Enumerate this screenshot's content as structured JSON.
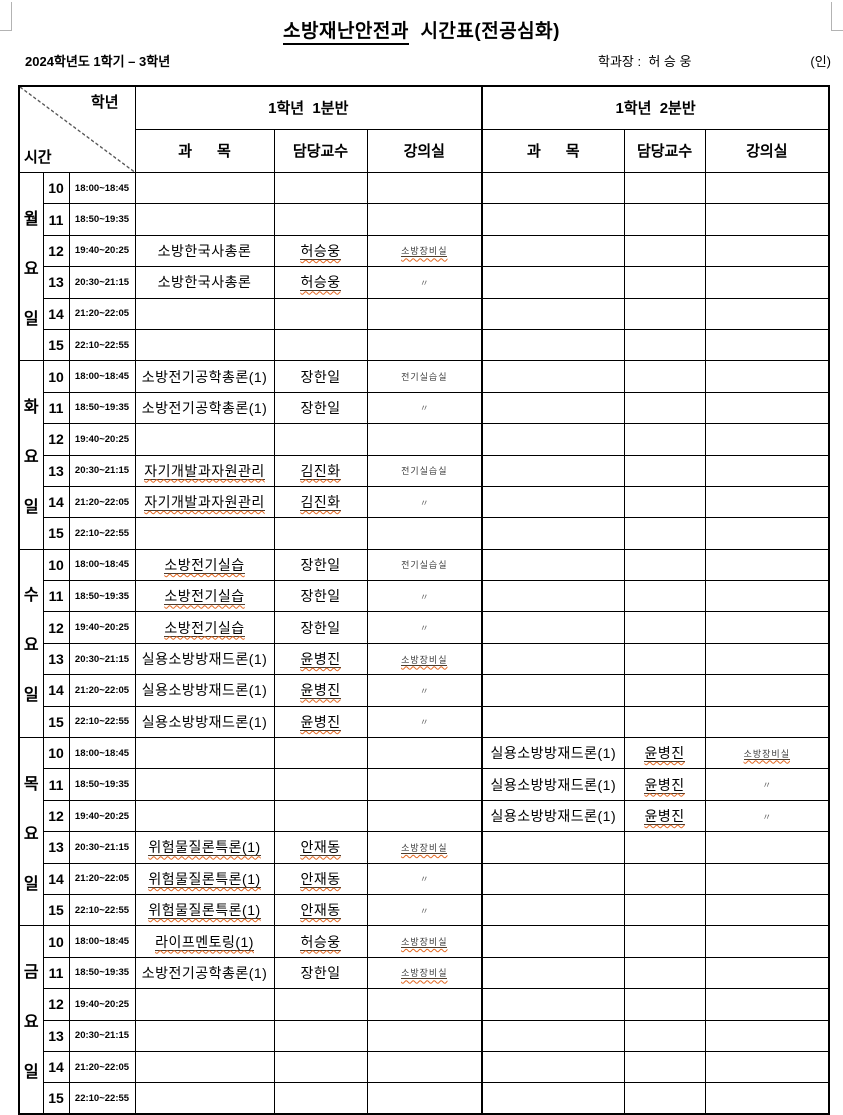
{
  "page": {
    "title_underline": "소방재난안전과",
    "title_rest": "  시간표(전공심화)",
    "term": "2024학년도 1학기 – 3학년",
    "dept_head": "학과장 :  허 승 웅",
    "seal": "(인)"
  },
  "table": {
    "corner_top": "학년",
    "corner_bottom": "시간",
    "groups": [
      "1학년  1분반",
      "1학년  2분반"
    ],
    "sub_headers": [
      "과      목",
      "담당교수",
      "강의실"
    ],
    "periods": [
      "10",
      "11",
      "12",
      "13",
      "14",
      "15"
    ],
    "times": [
      "18:00~18:45",
      "18:50~19:35",
      "19:40~20:25",
      "20:30~21:15",
      "21:20~22:05",
      "22:10~22:55"
    ],
    "ditto_mark": "〃"
  },
  "days": [
    {
      "label": "월요일",
      "chars": [
        "월",
        "요",
        "일"
      ],
      "rows": [
        {
          "left": null,
          "right": null
        },
        {
          "left": null,
          "right": null
        },
        {
          "left": {
            "subject": "소방한국사총론",
            "subject_misspell": false,
            "professor": "허승웅",
            "professor_misspell": true,
            "room": "소방장비실",
            "room_misspell": true
          },
          "right": null
        },
        {
          "left": {
            "subject": "소방한국사총론",
            "subject_misspell": false,
            "professor": "허승웅",
            "professor_misspell": true,
            "room": "〃",
            "room_misspell": false
          },
          "right": null
        },
        {
          "left": null,
          "right": null
        },
        {
          "left": null,
          "right": null
        }
      ]
    },
    {
      "label": "화요일",
      "chars": [
        "화",
        "요",
        "일"
      ],
      "rows": [
        {
          "left": {
            "subject": "소방전기공학총론(1)",
            "subject_misspell": false,
            "professor": "장한일",
            "professor_misspell": false,
            "room": "전기실습실",
            "room_misspell": false
          },
          "right": null
        },
        {
          "left": {
            "subject": "소방전기공학총론(1)",
            "subject_misspell": false,
            "professor": "장한일",
            "professor_misspell": false,
            "room": "〃",
            "room_misspell": false
          },
          "right": null
        },
        {
          "left": null,
          "right": null
        },
        {
          "left": {
            "subject": "자기개발과자원관리",
            "subject_misspell": true,
            "professor": "김진화",
            "professor_misspell": true,
            "room": "전기실습실",
            "room_misspell": false
          },
          "right": null
        },
        {
          "left": {
            "subject": "자기개발과자원관리",
            "subject_misspell": true,
            "professor": "김진화",
            "professor_misspell": true,
            "room": "〃",
            "room_misspell": false
          },
          "right": null
        },
        {
          "left": null,
          "right": null
        }
      ]
    },
    {
      "label": "수요일",
      "chars": [
        "수",
        "요",
        "일"
      ],
      "rows": [
        {
          "left": {
            "subject": "소방전기실습",
            "subject_misspell": true,
            "professor": "장한일",
            "professor_misspell": false,
            "room": "전기실습실",
            "room_misspell": false
          },
          "right": null
        },
        {
          "left": {
            "subject": "소방전기실습",
            "subject_misspell": true,
            "professor": "장한일",
            "professor_misspell": false,
            "room": "〃",
            "room_misspell": false
          },
          "right": null
        },
        {
          "left": {
            "subject": "소방전기실습",
            "subject_misspell": true,
            "professor": "장한일",
            "professor_misspell": false,
            "room": "〃",
            "room_misspell": false
          },
          "right": null
        },
        {
          "left": {
            "subject": "실용소방방재드론(1)",
            "subject_misspell": false,
            "professor": "윤병진",
            "professor_misspell": true,
            "room": "소방장비실",
            "room_misspell": true
          },
          "right": null
        },
        {
          "left": {
            "subject": "실용소방방재드론(1)",
            "subject_misspell": false,
            "professor": "윤병진",
            "professor_misspell": true,
            "room": "〃",
            "room_misspell": false
          },
          "right": null
        },
        {
          "left": {
            "subject": "실용소방방재드론(1)",
            "subject_misspell": false,
            "professor": "윤병진",
            "professor_misspell": true,
            "room": "〃",
            "room_misspell": false
          },
          "right": null
        }
      ]
    },
    {
      "label": "목요일",
      "chars": [
        "목",
        "요",
        "일"
      ],
      "rows": [
        {
          "left": null,
          "right": {
            "subject": "실용소방방재드론(1)",
            "subject_misspell": false,
            "professor": "윤병진",
            "professor_misspell": true,
            "room": "소방장비실",
            "room_misspell": true
          }
        },
        {
          "left": null,
          "right": {
            "subject": "실용소방방재드론(1)",
            "subject_misspell": false,
            "professor": "윤병진",
            "professor_misspell": true,
            "room": "〃",
            "room_misspell": false
          }
        },
        {
          "left": null,
          "right": {
            "subject": "실용소방방재드론(1)",
            "subject_misspell": false,
            "professor": "윤병진",
            "professor_misspell": true,
            "room": "〃",
            "room_misspell": false
          }
        },
        {
          "left": {
            "subject": "위험물질론특론(1)",
            "subject_misspell": true,
            "professor": "안재동",
            "professor_misspell": true,
            "room": "소방장비실",
            "room_misspell": true
          },
          "right": null
        },
        {
          "left": {
            "subject": "위험물질론특론(1)",
            "subject_misspell": true,
            "professor": "안재동",
            "professor_misspell": true,
            "room": "〃",
            "room_misspell": false
          },
          "right": null
        },
        {
          "left": {
            "subject": "위험물질론특론(1)",
            "subject_misspell": true,
            "professor": "안재동",
            "professor_misspell": true,
            "room": "〃",
            "room_misspell": false
          },
          "right": null
        }
      ]
    },
    {
      "label": "금요일",
      "chars": [
        "금",
        "요",
        "일"
      ],
      "rows": [
        {
          "left": {
            "subject": "라이프멘토링(1)",
            "subject_misspell": true,
            "professor": "허승웅",
            "professor_misspell": true,
            "room": "소방장비실",
            "room_misspell": true
          },
          "right": null
        },
        {
          "left": {
            "subject": "소방전기공학총론(1)",
            "subject_misspell": false,
            "professor": "장한일",
            "professor_misspell": false,
            "room": "소방장비실",
            "room_misspell": true
          },
          "right": null
        },
        {
          "left": null,
          "right": null
        },
        {
          "left": null,
          "right": null
        },
        {
          "left": null,
          "right": null
        },
        {
          "left": null,
          "right": null
        }
      ]
    }
  ]
}
